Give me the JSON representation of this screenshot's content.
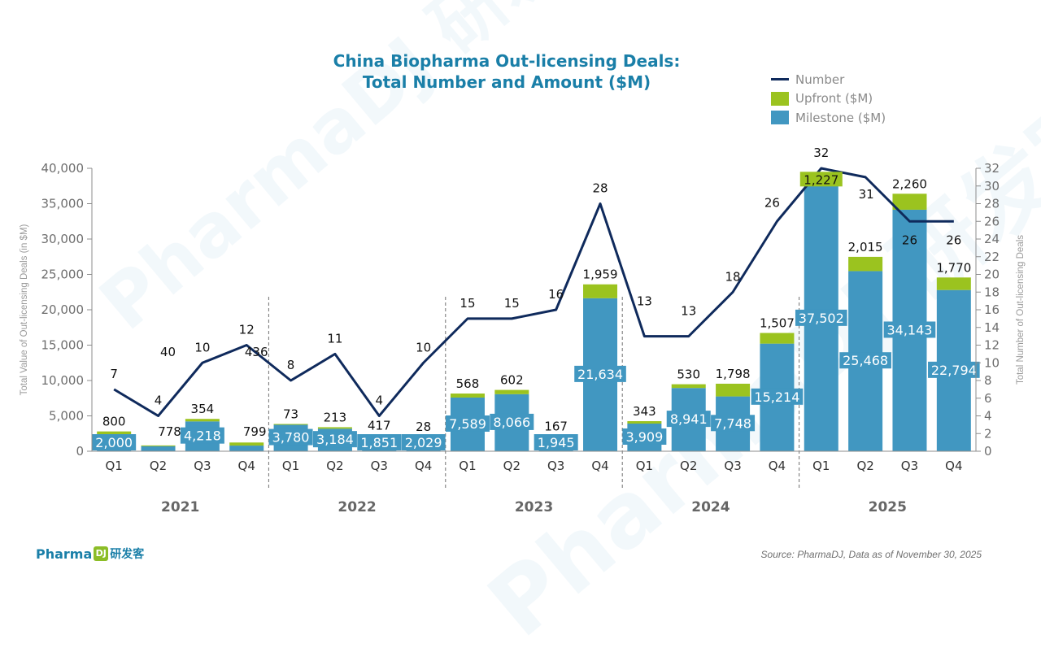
{
  "title_line1": "China Biopharma Out-licensing Deals:",
  "title_line2": "Total Number and Amount ($M)",
  "legend": {
    "number": "Number",
    "upfront": "Upfront ($M)",
    "milestone": "Milestone ($M)"
  },
  "colors": {
    "milestone": "#4197c1",
    "upfront": "#9bc31f",
    "number_line": "#0f2a5c",
    "title": "#1a7fa8",
    "axis_text": "#6e6e6e"
  },
  "footer": {
    "logo_text": "Pharma",
    "logo_mark": "DJ",
    "logo_cn": "研发客",
    "source": "Source: PharmaDJ, Data as of November 30, 2025"
  },
  "watermark_text": "PharmaDJ 研发客",
  "chart_data": {
    "type": "bar",
    "subtype": "stacked bar + line (dual axis)",
    "title": "China Biopharma Out-licensing Deals: Total Number and Amount ($M)",
    "ylabel": "Total Value of Out-licensing Deals (in $M)",
    "y2label": "Total Number of Out-licensing Deals",
    "ylim": [
      0,
      40000
    ],
    "yticks": [
      "0",
      "5,000",
      "10,000",
      "15,000",
      "20,000",
      "25,000",
      "30,000",
      "35,000",
      "40,000"
    ],
    "y2lim": [
      0,
      32
    ],
    "y2ticks": [
      "0",
      "2",
      "4",
      "6",
      "8",
      "10",
      "12",
      "14",
      "16",
      "18",
      "20",
      "22",
      "24",
      "26",
      "28",
      "30",
      "32"
    ],
    "legend_position": "top-right",
    "years": [
      "2021",
      "2022",
      "2023",
      "2024",
      "2025"
    ],
    "categories": [
      "Q1",
      "Q2",
      "Q3",
      "Q4",
      "Q1",
      "Q2",
      "Q3",
      "Q4",
      "Q1",
      "Q2",
      "Q3",
      "Q4",
      "Q1",
      "Q2",
      "Q3",
      "Q4",
      "Q1",
      "Q2",
      "Q3",
      "Q4"
    ],
    "series": [
      {
        "name": "Milestone ($M)",
        "kind": "bar",
        "values": [
          2000,
          778,
          4218,
          799,
          3780,
          3184,
          1851,
          2029,
          7589,
          8066,
          1945,
          21634,
          3909,
          8941,
          7748,
          15214,
          37502,
          25468,
          34143,
          22794
        ],
        "labels": [
          "2,000",
          "778",
          "4,218",
          "799",
          "3,780",
          "3,184",
          "1,851",
          "2,029",
          "7,589",
          "8,066",
          "1,945",
          "21,634",
          "3,909",
          "8,941",
          "7,748",
          "15,214",
          "37,502",
          "25,468",
          "34,143",
          "22,794"
        ]
      },
      {
        "name": "Upfront ($M)",
        "kind": "bar",
        "values": [
          800,
          40,
          354,
          436,
          73,
          213,
          417,
          28,
          568,
          602,
          167,
          1959,
          343,
          530,
          1798,
          1507,
          1227,
          2015,
          2260,
          1770
        ],
        "labels": [
          "800",
          "40",
          "354",
          "436",
          "73",
          "213",
          "417",
          "28",
          "568",
          "602",
          "167",
          "1,959",
          "343",
          "530",
          "1,798",
          "1,507",
          "1,227",
          "2,015",
          "2,260",
          "1,770"
        ]
      },
      {
        "name": "Number",
        "kind": "line",
        "axis": "right",
        "values": [
          7,
          4,
          10,
          12,
          8,
          11,
          4,
          10,
          15,
          15,
          16,
          28,
          13,
          13,
          18,
          26,
          32,
          31,
          26,
          26
        ],
        "labels": [
          "7",
          "4",
          "10",
          "12",
          "8",
          "11",
          "4",
          "10",
          "15",
          "15",
          "16",
          "28",
          "13",
          "13",
          "18",
          "26",
          "32",
          "31",
          "26",
          "26"
        ]
      }
    ]
  }
}
